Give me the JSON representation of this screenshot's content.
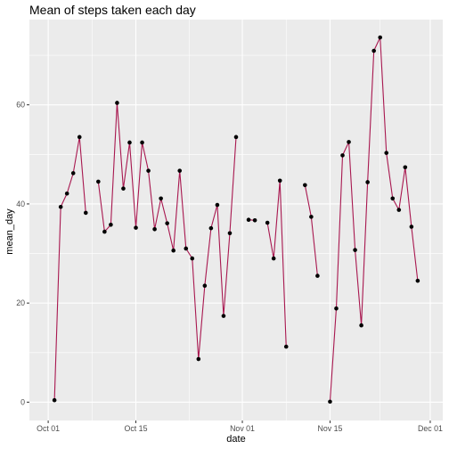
{
  "chart_data": {
    "type": "line",
    "title": "Mean of steps taken each day",
    "xlabel": "date",
    "ylabel": "mean_day",
    "x_ticks": [
      "Oct 01",
      "Oct 15",
      "Nov 01",
      "Nov 15",
      "Dec 01"
    ],
    "y_ticks": [
      "0",
      "20",
      "40",
      "60"
    ],
    "xlim": [
      "2012-09-28",
      "2012-12-03"
    ],
    "ylim": [
      -3.7,
      77.2
    ],
    "grid": true,
    "background": "panel-grey",
    "colors": {
      "line": "#a8174f",
      "point": "#000000",
      "panel": "#ebebeb",
      "grid": "#ffffff"
    },
    "series": [
      {
        "points": [
          [
            "2012-10-02",
            0.4
          ],
          [
            "2012-10-03",
            39.4
          ],
          [
            "2012-10-04",
            42.1
          ],
          [
            "2012-10-05",
            46.2
          ],
          [
            "2012-10-06",
            53.5
          ],
          [
            "2012-10-07",
            38.2
          ],
          [
            "2012-10-08",
            null
          ],
          [
            "2012-10-09",
            44.5
          ],
          [
            "2012-10-10",
            34.4
          ],
          [
            "2012-10-11",
            35.8
          ],
          [
            "2012-10-12",
            60.4
          ],
          [
            "2012-10-13",
            43.1
          ],
          [
            "2012-10-14",
            52.4
          ],
          [
            "2012-10-15",
            35.2
          ],
          [
            "2012-10-16",
            52.4
          ],
          [
            "2012-10-17",
            46.7
          ],
          [
            "2012-10-18",
            34.9
          ],
          [
            "2012-10-19",
            41.1
          ],
          [
            "2012-10-20",
            36.1
          ],
          [
            "2012-10-21",
            30.6
          ],
          [
            "2012-10-22",
            46.7
          ],
          [
            "2012-10-23",
            31.0
          ],
          [
            "2012-10-24",
            29.0
          ],
          [
            "2012-10-25",
            8.7
          ],
          [
            "2012-10-26",
            23.5
          ],
          [
            "2012-10-27",
            35.1
          ],
          [
            "2012-10-28",
            39.8
          ],
          [
            "2012-10-29",
            17.4
          ],
          [
            "2012-10-30",
            34.1
          ],
          [
            "2012-10-31",
            53.5
          ],
          [
            "2012-11-01",
            null
          ],
          [
            "2012-11-02",
            36.8
          ],
          [
            "2012-11-03",
            36.7
          ],
          [
            "2012-11-04",
            null
          ],
          [
            "2012-11-05",
            36.2
          ],
          [
            "2012-11-06",
            29.0
          ],
          [
            "2012-11-07",
            44.7
          ],
          [
            "2012-11-08",
            11.2
          ],
          [
            "2012-11-09",
            null
          ],
          [
            "2012-11-10",
            null
          ],
          [
            "2012-11-11",
            43.8
          ],
          [
            "2012-11-12",
            37.4
          ],
          [
            "2012-11-13",
            25.5
          ],
          [
            "2012-11-14",
            null
          ],
          [
            "2012-11-15",
            0.1
          ],
          [
            "2012-11-16",
            18.9
          ],
          [
            "2012-11-17",
            49.8
          ],
          [
            "2012-11-18",
            52.5
          ],
          [
            "2012-11-19",
            30.7
          ],
          [
            "2012-11-20",
            15.5
          ],
          [
            "2012-11-21",
            44.4
          ],
          [
            "2012-11-22",
            70.9
          ],
          [
            "2012-11-23",
            73.6
          ],
          [
            "2012-11-24",
            50.3
          ],
          [
            "2012-11-25",
            41.1
          ],
          [
            "2012-11-26",
            38.8
          ],
          [
            "2012-11-27",
            47.4
          ],
          [
            "2012-11-28",
            35.4
          ],
          [
            "2012-11-29",
            24.5
          ]
        ]
      }
    ]
  }
}
